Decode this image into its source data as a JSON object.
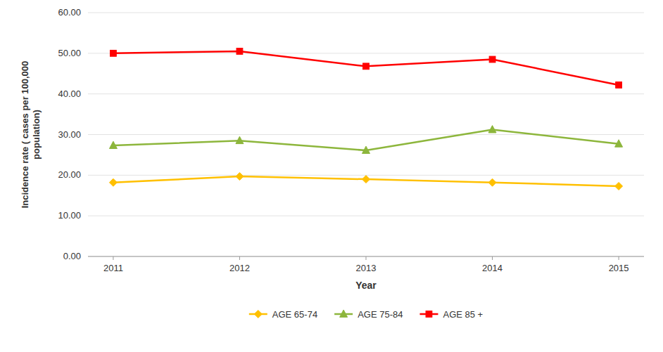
{
  "chart_data": {
    "type": "line",
    "xlabel": "Year",
    "ylabel": "Incidence rate ( cases per 100,000\npopulation)",
    "x": [
      2011,
      2012,
      2013,
      2014,
      2015
    ],
    "xlim": [
      2010.8,
      2015.2
    ],
    "xticks": [
      2011,
      2012,
      2013,
      2014,
      2015
    ],
    "ylim": [
      0.0,
      60.0
    ],
    "yticks": [
      {
        "value": 0.0,
        "label": "0.00"
      },
      {
        "value": 10.0,
        "label": "10.00"
      },
      {
        "value": 20.0,
        "label": "20.00"
      },
      {
        "value": 30.0,
        "label": "30.00"
      },
      {
        "value": 40.0,
        "label": "40.00"
      },
      {
        "value": 50.0,
        "label": "50.00"
      },
      {
        "value": 60.0,
        "label": "60.00"
      }
    ],
    "grid": true,
    "legend": "bottom",
    "series": [
      {
        "name": "AGE 65-74",
        "color": "#FFC000",
        "marker": "diamond",
        "values": [
          18.2,
          19.7,
          19.0,
          18.2,
          17.3
        ]
      },
      {
        "name": "AGE 75-84",
        "color": "#8DB63C",
        "marker": "triangle",
        "values": [
          27.3,
          28.5,
          26.1,
          31.2,
          27.7
        ]
      },
      {
        "name": "AGE 85 +",
        "color": "#FF0000",
        "marker": "square",
        "values": [
          50.0,
          50.5,
          46.8,
          48.5,
          42.2
        ]
      }
    ]
  }
}
